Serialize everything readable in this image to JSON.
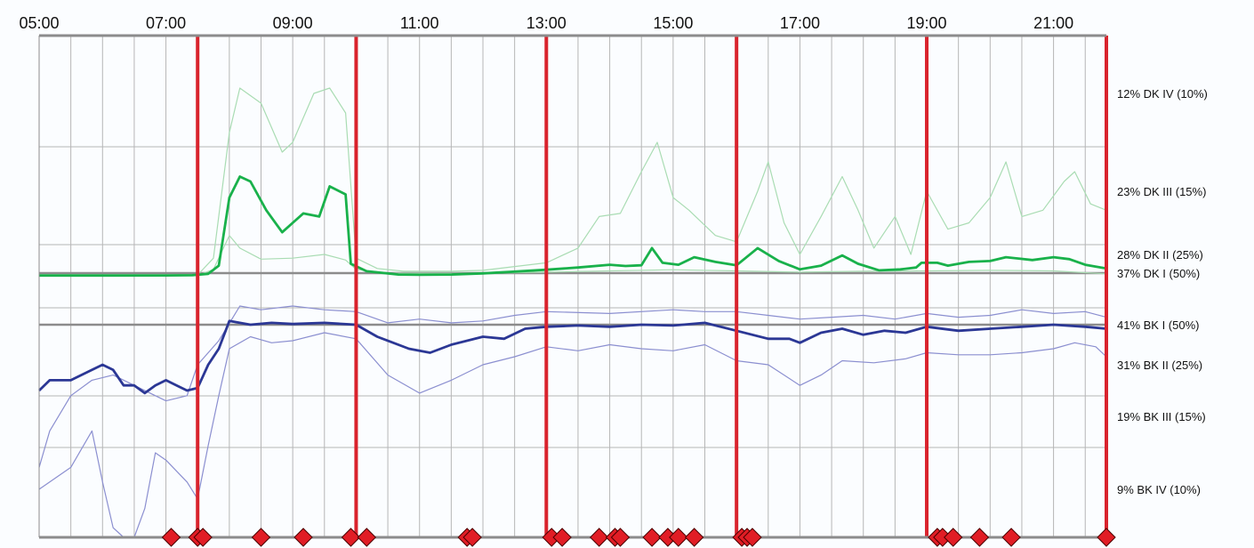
{
  "chart_data": {
    "type": "line",
    "title": "",
    "x_range": [
      "05:00",
      "21:50"
    ],
    "x_tick_labels": [
      "05:00",
      "07:00",
      "09:00",
      "11:00",
      "13:00",
      "15:00",
      "17:00",
      "19:00",
      "21:00"
    ],
    "y_band_labels": [
      {
        "label": "12% DK IV (10%)",
        "level": 4
      },
      {
        "label": "23% DK III (15%)",
        "level": 3
      },
      {
        "label": "28% DK II (25%)",
        "level": 2
      },
      {
        "label": "37% DK I (50%)",
        "level": 1
      },
      {
        "label": "41% BK I (50%)",
        "level": -1
      },
      {
        "label": "31% BK II (25%)",
        "level": -2
      },
      {
        "label": "19% BK III (15%)",
        "level": -3
      },
      {
        "label": "9% BK IV (10%)",
        "level": -4
      }
    ],
    "reference_levels": [
      {
        "name": "DK I threshold",
        "level": 1
      },
      {
        "name": "BK I threshold",
        "level": -1
      }
    ],
    "event_lines": [
      "07:30",
      "10:00",
      "13:00",
      "16:00",
      "19:00",
      "21:50"
    ],
    "event_markers": [
      "07:05",
      "07:30",
      "07:35",
      "08:30",
      "09:10",
      "09:55",
      "10:10",
      "11:45",
      "11:50",
      "13:05",
      "13:15",
      "13:50",
      "14:05",
      "14:10",
      "14:40",
      "14:55",
      "15:05",
      "15:20",
      "16:05",
      "16:10",
      "16:15",
      "19:10",
      "19:15",
      "19:25",
      "19:50",
      "20:20",
      "21:50"
    ],
    "series": [
      {
        "color": "#a9dcb3",
        "width": 1.2,
        "points": [
          [
            "05:00",
            0.83
          ],
          [
            "07:00",
            0.83
          ],
          [
            "07:30",
            0.87
          ],
          [
            "07:45",
            1.8
          ],
          [
            "08:00",
            3.6
          ],
          [
            "08:10",
            4.1
          ],
          [
            "08:30",
            3.9
          ],
          [
            "08:50",
            3.4
          ],
          [
            "09:00",
            3.5
          ],
          [
            "09:20",
            4.0
          ],
          [
            "09:35",
            4.1
          ],
          [
            "09:50",
            3.8
          ],
          [
            "10:00",
            1.8
          ],
          [
            "10:20",
            1.25
          ],
          [
            "10:45",
            1.1
          ],
          [
            "11:30",
            1.1
          ],
          [
            "12:00",
            1.15
          ],
          [
            "12:30",
            1.35
          ],
          [
            "13:00",
            1.55
          ],
          [
            "13:30",
            2.1
          ],
          [
            "13:50",
            2.6
          ],
          [
            "14:10",
            2.65
          ],
          [
            "14:30",
            3.2
          ],
          [
            "14:45",
            3.5
          ],
          [
            "15:00",
            2.9
          ],
          [
            "15:15",
            2.7
          ],
          [
            "15:40",
            2.3
          ],
          [
            "16:00",
            2.2
          ],
          [
            "16:20",
            3.0
          ],
          [
            "16:30",
            3.3
          ],
          [
            "16:45",
            2.5
          ],
          [
            "17:00",
            2.0
          ],
          [
            "17:20",
            2.6
          ],
          [
            "17:40",
            3.15
          ],
          [
            "17:55",
            2.7
          ],
          [
            "18:10",
            2.1
          ],
          [
            "18:30",
            2.6
          ],
          [
            "18:45",
            2.0
          ],
          [
            "19:00",
            3.0
          ],
          [
            "19:20",
            2.4
          ],
          [
            "19:40",
            2.5
          ],
          [
            "20:00",
            2.9
          ],
          [
            "20:15",
            3.3
          ],
          [
            "20:30",
            2.6
          ],
          [
            "20:50",
            2.7
          ],
          [
            "21:10",
            3.1
          ],
          [
            "21:20",
            3.2
          ],
          [
            "21:35",
            2.8
          ],
          [
            "21:50",
            2.7
          ]
        ]
      },
      {
        "color": "#a9dcb3",
        "width": 1.2,
        "points": [
          [
            "05:00",
            0.83
          ],
          [
            "07:30",
            0.83
          ],
          [
            "07:45",
            1.2
          ],
          [
            "08:00",
            2.3
          ],
          [
            "08:10",
            2.1
          ],
          [
            "08:30",
            1.75
          ],
          [
            "09:00",
            1.8
          ],
          [
            "09:30",
            2.0
          ],
          [
            "09:50",
            1.7
          ],
          [
            "10:00",
            1.2
          ],
          [
            "10:30",
            1.0
          ],
          [
            "12:00",
            0.98
          ],
          [
            "13:00",
            1.05
          ],
          [
            "14:00",
            1.12
          ],
          [
            "15:00",
            1.18
          ],
          [
            "16:00",
            1.12
          ],
          [
            "17:00",
            1.05
          ],
          [
            "18:00",
            1.1
          ],
          [
            "19:00",
            1.12
          ],
          [
            "20:00",
            1.15
          ],
          [
            "21:00",
            1.12
          ],
          [
            "21:50",
            0.95
          ]
        ]
      },
      {
        "color": "#19b14b",
        "width": 2.8,
        "points": [
          [
            "05:00",
            0.83
          ],
          [
            "06:00",
            0.83
          ],
          [
            "07:00",
            0.84
          ],
          [
            "07:25",
            0.85
          ],
          [
            "07:40",
            0.95
          ],
          [
            "07:50",
            1.4
          ],
          [
            "08:00",
            2.9
          ],
          [
            "08:10",
            3.15
          ],
          [
            "08:20",
            3.1
          ],
          [
            "08:35",
            2.7
          ],
          [
            "08:50",
            2.35
          ],
          [
            "09:00",
            2.5
          ],
          [
            "09:10",
            2.65
          ],
          [
            "09:25",
            2.6
          ],
          [
            "09:35",
            3.05
          ],
          [
            "09:50",
            2.95
          ],
          [
            "09:55",
            1.5
          ],
          [
            "10:10",
            1.1
          ],
          [
            "10:40",
            0.9
          ],
          [
            "11:00",
            0.88
          ],
          [
            "11:30",
            0.9
          ],
          [
            "12:00",
            0.98
          ],
          [
            "12:30",
            1.08
          ],
          [
            "13:00",
            1.18
          ],
          [
            "13:30",
            1.3
          ],
          [
            "14:00",
            1.45
          ],
          [
            "14:15",
            1.38
          ],
          [
            "14:30",
            1.42
          ],
          [
            "14:40",
            2.1
          ],
          [
            "14:50",
            1.55
          ],
          [
            "15:05",
            1.45
          ],
          [
            "15:20",
            1.85
          ],
          [
            "15:40",
            1.6
          ],
          [
            "16:00",
            1.42
          ],
          [
            "16:20",
            2.1
          ],
          [
            "16:40",
            1.65
          ],
          [
            "17:00",
            1.2
          ],
          [
            "17:20",
            1.4
          ],
          [
            "17:40",
            1.95
          ],
          [
            "17:55",
            1.5
          ],
          [
            "18:15",
            1.15
          ],
          [
            "18:35",
            1.2
          ],
          [
            "18:50",
            1.3
          ],
          [
            "18:55",
            1.55
          ],
          [
            "19:10",
            1.55
          ],
          [
            "19:20",
            1.4
          ],
          [
            "19:40",
            1.6
          ],
          [
            "20:00",
            1.65
          ],
          [
            "20:15",
            1.85
          ],
          [
            "20:40",
            1.7
          ],
          [
            "21:00",
            1.85
          ],
          [
            "21:15",
            1.75
          ],
          [
            "21:30",
            1.45
          ],
          [
            "21:45",
            1.3
          ],
          [
            "21:50",
            1.25
          ]
        ]
      },
      {
        "color": "#8b8fd0",
        "width": 1.2,
        "points": [
          [
            "05:00",
            -3.7
          ],
          [
            "05:10",
            -3.2
          ],
          [
            "05:30",
            -2.6
          ],
          [
            "05:50",
            -2.3
          ],
          [
            "06:10",
            -2.2
          ],
          [
            "06:30",
            -2.4
          ],
          [
            "06:45",
            -2.55
          ],
          [
            "07:00",
            -2.7
          ],
          [
            "07:20",
            -2.6
          ],
          [
            "07:30",
            -2.0
          ],
          [
            "07:50",
            -1.4
          ],
          [
            "08:10",
            -0.5
          ],
          [
            "08:30",
            -0.6
          ],
          [
            "09:00",
            -0.5
          ],
          [
            "09:30",
            -0.6
          ],
          [
            "10:00",
            -0.65
          ],
          [
            "10:30",
            -0.95
          ],
          [
            "11:00",
            -0.85
          ],
          [
            "11:30",
            -0.95
          ],
          [
            "12:00",
            -0.9
          ],
          [
            "12:30",
            -0.75
          ],
          [
            "13:00",
            -0.65
          ],
          [
            "14:00",
            -0.7
          ],
          [
            "15:00",
            -0.6
          ],
          [
            "15:30",
            -0.65
          ],
          [
            "16:00",
            -0.65
          ],
          [
            "16:30",
            -0.75
          ],
          [
            "17:00",
            -0.85
          ],
          [
            "17:30",
            -0.8
          ],
          [
            "18:00",
            -0.75
          ],
          [
            "18:30",
            -0.85
          ],
          [
            "19:00",
            -0.7
          ],
          [
            "19:30",
            -0.8
          ],
          [
            "20:00",
            -0.75
          ],
          [
            "20:30",
            -0.6
          ],
          [
            "21:00",
            -0.7
          ],
          [
            "21:30",
            -0.65
          ],
          [
            "21:50",
            -0.8
          ]
        ]
      },
      {
        "color": "#8b8fd0",
        "width": 1.2,
        "points": [
          [
            "05:00",
            -4.0
          ],
          [
            "05:30",
            -3.7
          ],
          [
            "05:50",
            -3.2
          ],
          [
            "06:00",
            -3.9
          ],
          [
            "06:10",
            -4.8
          ],
          [
            "06:20",
            -5.0
          ],
          [
            "06:30",
            -5.0
          ],
          [
            "06:40",
            -4.4
          ],
          [
            "06:50",
            -3.5
          ],
          [
            "07:00",
            -3.6
          ],
          [
            "07:20",
            -3.9
          ],
          [
            "07:30",
            -4.2
          ],
          [
            "07:40",
            -3.4
          ],
          [
            "07:50",
            -2.6
          ],
          [
            "08:00",
            -1.6
          ],
          [
            "08:20",
            -1.3
          ],
          [
            "08:40",
            -1.45
          ],
          [
            "09:00",
            -1.4
          ],
          [
            "09:30",
            -1.2
          ],
          [
            "10:00",
            -1.35
          ],
          [
            "10:30",
            -2.2
          ],
          [
            "11:00",
            -2.55
          ],
          [
            "11:30",
            -2.3
          ],
          [
            "12:00",
            -2.0
          ],
          [
            "12:30",
            -1.8
          ],
          [
            "13:00",
            -1.55
          ],
          [
            "13:30",
            -1.65
          ],
          [
            "14:00",
            -1.5
          ],
          [
            "14:30",
            -1.6
          ],
          [
            "15:00",
            -1.65
          ],
          [
            "15:30",
            -1.5
          ],
          [
            "16:00",
            -1.9
          ],
          [
            "16:30",
            -2.0
          ],
          [
            "17:00",
            -2.4
          ],
          [
            "17:20",
            -2.2
          ],
          [
            "17:40",
            -1.9
          ],
          [
            "18:10",
            -1.95
          ],
          [
            "18:40",
            -1.85
          ],
          [
            "19:00",
            -1.7
          ],
          [
            "19:30",
            -1.75
          ],
          [
            "20:00",
            -1.75
          ],
          [
            "20:30",
            -1.7
          ],
          [
            "21:00",
            -1.6
          ],
          [
            "21:20",
            -1.45
          ],
          [
            "21:40",
            -1.55
          ],
          [
            "21:50",
            -1.8
          ]
        ]
      },
      {
        "color": "#2b3795",
        "width": 2.8,
        "points": [
          [
            "05:00",
            -2.5
          ],
          [
            "05:10",
            -2.3
          ],
          [
            "05:30",
            -2.3
          ],
          [
            "05:50",
            -2.1
          ],
          [
            "06:00",
            -2.0
          ],
          [
            "06:10",
            -2.1
          ],
          [
            "06:20",
            -2.4
          ],
          [
            "06:30",
            -2.4
          ],
          [
            "06:40",
            -2.55
          ],
          [
            "06:50",
            -2.4
          ],
          [
            "07:00",
            -2.3
          ],
          [
            "07:10",
            -2.4
          ],
          [
            "07:20",
            -2.5
          ],
          [
            "07:30",
            -2.45
          ],
          [
            "07:40",
            -2.0
          ],
          [
            "07:50",
            -1.6
          ],
          [
            "08:00",
            -0.9
          ],
          [
            "08:20",
            -1.0
          ],
          [
            "08:40",
            -0.95
          ],
          [
            "09:00",
            -0.98
          ],
          [
            "09:30",
            -0.95
          ],
          [
            "10:00",
            -1.0
          ],
          [
            "10:20",
            -1.3
          ],
          [
            "10:50",
            -1.6
          ],
          [
            "11:10",
            -1.7
          ],
          [
            "11:30",
            -1.5
          ],
          [
            "12:00",
            -1.3
          ],
          [
            "12:20",
            -1.35
          ],
          [
            "12:40",
            -1.1
          ],
          [
            "13:00",
            -1.05
          ],
          [
            "13:30",
            -1.02
          ],
          [
            "14:00",
            -1.05
          ],
          [
            "14:30",
            -1.0
          ],
          [
            "15:00",
            -1.02
          ],
          [
            "15:30",
            -0.95
          ],
          [
            "16:00",
            -1.15
          ],
          [
            "16:30",
            -1.35
          ],
          [
            "16:50",
            -1.35
          ],
          [
            "17:00",
            -1.45
          ],
          [
            "17:20",
            -1.2
          ],
          [
            "17:40",
            -1.1
          ],
          [
            "18:00",
            -1.25
          ],
          [
            "18:20",
            -1.15
          ],
          [
            "18:40",
            -1.2
          ],
          [
            "19:00",
            -1.05
          ],
          [
            "19:30",
            -1.15
          ],
          [
            "20:00",
            -1.1
          ],
          [
            "20:30",
            -1.05
          ],
          [
            "21:00",
            -1.0
          ],
          [
            "21:30",
            -1.05
          ],
          [
            "21:50",
            -1.1
          ]
        ]
      }
    ],
    "colors": {
      "background": "#fbfdff",
      "grid": "#b6b6b6",
      "frame": "#8c8c8c",
      "reference_line": "#8c8c8c",
      "event_line": "#d9232d",
      "marker": "#e11d25"
    },
    "grid": true,
    "band_labels_position": "right"
  }
}
